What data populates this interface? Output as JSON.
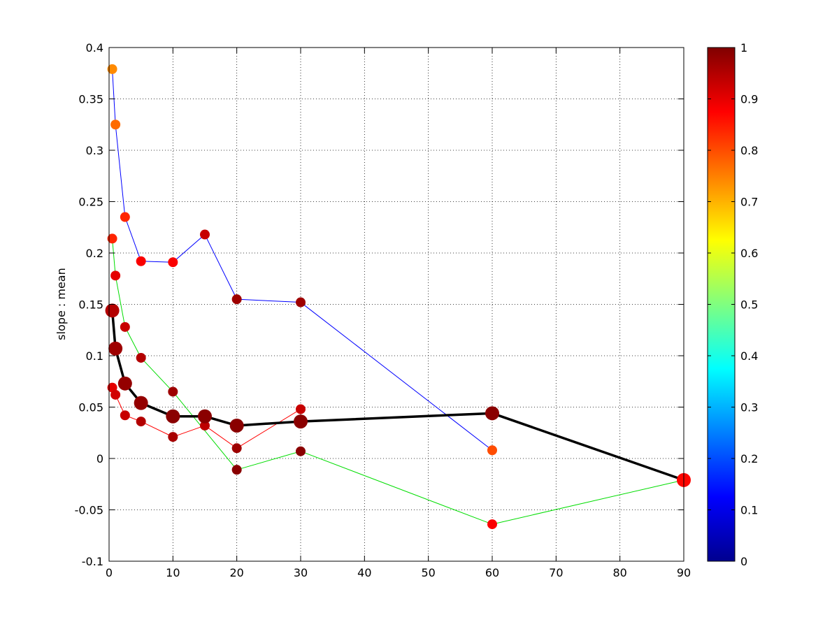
{
  "chart_data": {
    "type": "scatter",
    "title": "",
    "xlabel": "",
    "ylabel": "slope : mean",
    "xlim": [
      0,
      90
    ],
    "ylim": [
      -0.1,
      0.4
    ],
    "grid": true,
    "xticks": [
      0,
      10,
      20,
      30,
      40,
      50,
      60,
      70,
      80,
      90
    ],
    "xtick_labels": [
      "0",
      "10",
      "20",
      "30",
      "40",
      "50",
      "60",
      "70",
      "80",
      "90"
    ],
    "yticks": [
      -0.1,
      -0.05,
      0,
      0.05,
      0.1,
      0.15,
      0.2,
      0.25,
      0.3,
      0.35,
      0.4
    ],
    "ytick_labels": [
      "-0.1",
      "-0.05",
      "0",
      "0.05",
      "0.1",
      "0.15",
      "0.2",
      "0.25",
      "0.3",
      "0.35",
      "0.4"
    ],
    "colorbar": {
      "colormap": "jet",
      "range": [
        0,
        1
      ],
      "ticks": [
        0,
        0.1,
        0.2,
        0.3,
        0.4,
        0.5,
        0.6,
        0.7,
        0.8,
        0.9,
        1
      ],
      "tick_labels": [
        "0",
        "0.1",
        "0.2",
        "0.3",
        "0.4",
        "0.5",
        "0.6",
        "0.7",
        "0.8",
        "0.9",
        "1"
      ]
    },
    "series": [
      {
        "line_color": "#0000ff",
        "line_width": "thin",
        "marker_size": "small",
        "points": [
          {
            "x": 0.5,
            "y": 0.379,
            "c": 0.74
          },
          {
            "x": 1,
            "y": 0.325,
            "c": 0.77
          },
          {
            "x": 2.5,
            "y": 0.235,
            "c": 0.84
          },
          {
            "x": 5,
            "y": 0.192,
            "c": 0.88
          },
          {
            "x": 10,
            "y": 0.191,
            "c": 0.88
          },
          {
            "x": 15,
            "y": 0.218,
            "c": 0.93
          },
          {
            "x": 20,
            "y": 0.155,
            "c": 0.97
          },
          {
            "x": 30,
            "y": 0.152,
            "c": 0.97
          },
          {
            "x": 60,
            "y": 0.008,
            "c": 0.8
          }
        ]
      },
      {
        "line_color": "#00dd00",
        "line_width": "thin",
        "marker_size": "small",
        "points": [
          {
            "x": 0.5,
            "y": 0.214,
            "c": 0.84
          },
          {
            "x": 1,
            "y": 0.178,
            "c": 0.9
          },
          {
            "x": 2.5,
            "y": 0.128,
            "c": 0.93
          },
          {
            "x": 5,
            "y": 0.098,
            "c": 0.95
          },
          {
            "x": 10,
            "y": 0.065,
            "c": 0.97
          },
          {
            "x": 20,
            "y": -0.011,
            "c": 0.99
          },
          {
            "x": 30,
            "y": 0.007,
            "c": 0.99
          },
          {
            "x": 60,
            "y": -0.064,
            "c": 0.88
          },
          {
            "x": 90,
            "y": -0.021,
            "c": 0.87
          }
        ]
      },
      {
        "line_color": "#ff0000",
        "line_width": "thin",
        "marker_size": "small",
        "points": [
          {
            "x": 0.5,
            "y": 0.069,
            "c": 0.9
          },
          {
            "x": 1,
            "y": 0.062,
            "c": 0.92
          },
          {
            "x": 2.5,
            "y": 0.042,
            "c": 0.93
          },
          {
            "x": 5,
            "y": 0.036,
            "c": 0.95
          },
          {
            "x": 10,
            "y": 0.021,
            "c": 0.96
          },
          {
            "x": 15,
            "y": 0.032,
            "c": 0.94
          },
          {
            "x": 20,
            "y": 0.01,
            "c": 0.97
          },
          {
            "x": 30,
            "y": 0.048,
            "c": 0.93
          }
        ]
      },
      {
        "line_color": "#000000",
        "line_width": "thick",
        "marker_size": "large",
        "points": [
          {
            "x": 0.5,
            "y": 0.144,
            "c": 0.95
          },
          {
            "x": 1,
            "y": 0.107,
            "c": 0.97
          },
          {
            "x": 2.5,
            "y": 0.073,
            "c": 0.98
          },
          {
            "x": 5,
            "y": 0.054,
            "c": 0.98
          },
          {
            "x": 10,
            "y": 0.041,
            "c": 0.99
          },
          {
            "x": 15,
            "y": 0.041,
            "c": 0.99
          },
          {
            "x": 20,
            "y": 0.032,
            "c": 0.99
          },
          {
            "x": 30,
            "y": 0.036,
            "c": 0.99
          },
          {
            "x": 60,
            "y": 0.044,
            "c": 0.99
          },
          {
            "x": 90,
            "y": -0.021,
            "c": 0.87
          }
        ]
      }
    ]
  }
}
